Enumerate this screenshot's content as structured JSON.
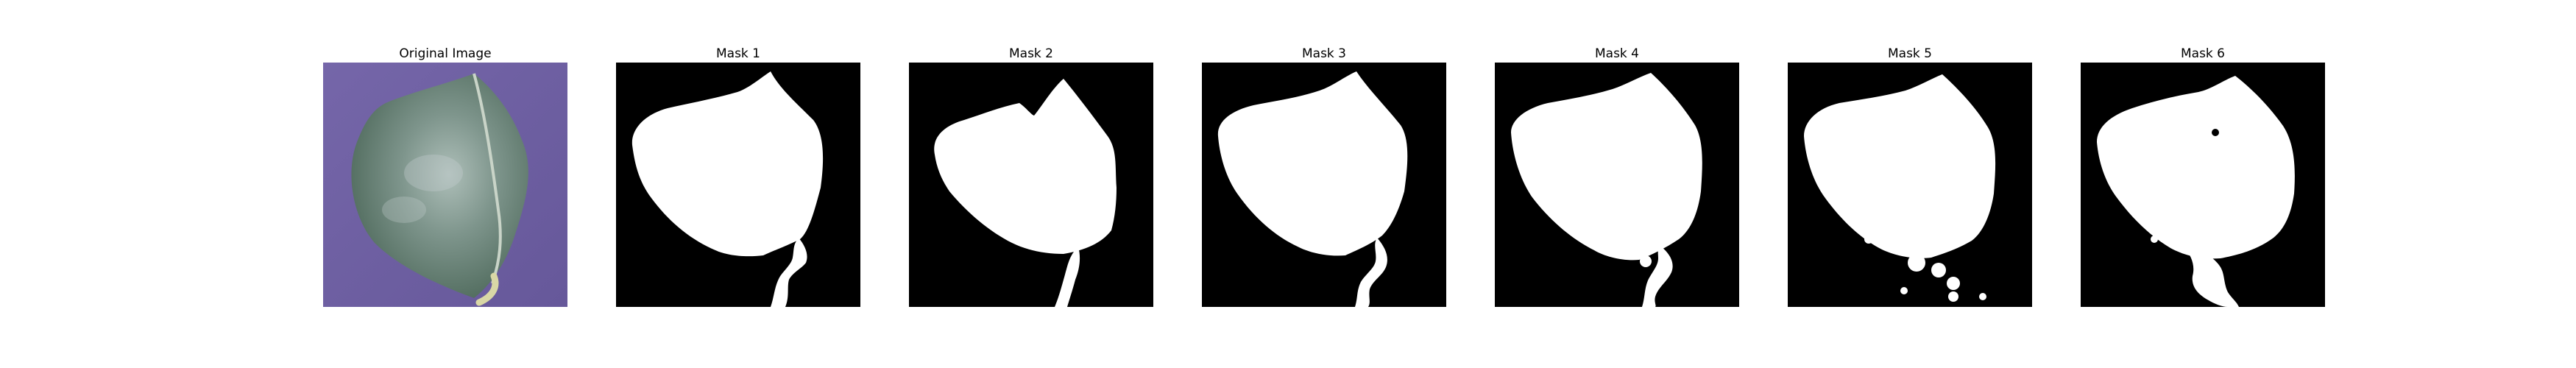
{
  "panels": [
    {
      "title": "Original Image",
      "kind": "photo",
      "subject": "leaf-on-purple-background"
    },
    {
      "title": "Mask 1",
      "kind": "mask"
    },
    {
      "title": "Mask 2",
      "kind": "mask"
    },
    {
      "title": "Mask 3",
      "kind": "mask"
    },
    {
      "title": "Mask 4",
      "kind": "mask"
    },
    {
      "title": "Mask 5",
      "kind": "mask"
    },
    {
      "title": "Mask 6",
      "kind": "mask"
    }
  ],
  "colors": {
    "background": "#ffffff",
    "photo_background": "#6f5fa3",
    "leaf_dark": "#4f6a5c",
    "leaf_light": "#aebfb9",
    "stem": "#d9d7a6",
    "mask_background": "#000000",
    "mask_foreground": "#ffffff"
  }
}
